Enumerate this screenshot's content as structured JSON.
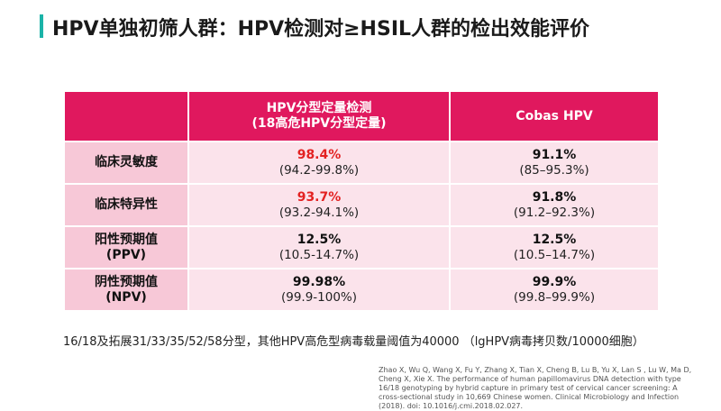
{
  "title": "HPV单独初筛人群：HPV检测对≥HSIL人群的检出效能评价",
  "table": {
    "headers": {
      "col1_line1": "HPV分型定量检测",
      "col1_line2": "(18高危HPV分型定量)",
      "col2": "Cobas HPV"
    },
    "rows": [
      {
        "label_line1": "临床灵敏度",
        "label_line2": "",
        "c1_value": "98.4%",
        "c1_ci": "(94.2-99.8%)",
        "c2_value": "91.1%",
        "c2_ci": "(85–95.3%)"
      },
      {
        "label_line1": "临床特异性",
        "label_line2": "",
        "c1_value": "93.7%",
        "c1_ci": "(93.2-94.1%)",
        "c2_value": "91.8%",
        "c2_ci": "(91.2–92.3%)"
      },
      {
        "label_line1": "阳性预期值",
        "label_line2": "(PPV)",
        "c1_value": "12.5%",
        "c1_ci": "(10.5-14.7%)",
        "c2_value": "12.5%",
        "c2_ci": "(10.5–14.7%)"
      },
      {
        "label_line1": "阴性预期值",
        "label_line2": "(NPV)",
        "c1_value": "99.98%",
        "c1_ci": "(99.9-100%)",
        "c2_value": "99.9%",
        "c2_ci": "(99.8–99.9%)"
      }
    ]
  },
  "note": "16/18及拓展31/33/35/52/58分型，其他HPV高危型病毒载量阈值为40000 （lgHPV病毒拷贝数/10000细胞）",
  "reference": "Zhao X, Wu Q, Wang X, Fu Y, Zhang X, Tian X, Cheng B, Lu B, Yu X, Lan S , Lu W, Ma D, Cheng X, Xie X. The performance of human papillomavirus DNA detection with type 16/18 genotyping by hybrid capture in primary test of cervical cancer screening: A cross-sectional study in 10,669 Chinese women. Clinical Microbiology and Infection (2018). doi: 10.1016/j.cmi.2018.02.027.",
  "colors": {
    "accent_bar": "#1bb3a8",
    "header_bg": "#e0185e",
    "label_bg": "#f7c8d7",
    "cell_bg": "#fbe3eb",
    "highlight": "#e32222"
  }
}
